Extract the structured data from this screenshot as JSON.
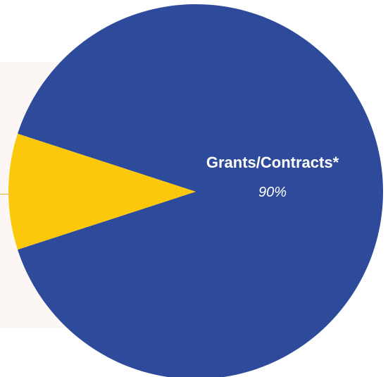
{
  "chart_data": {
    "type": "pie",
    "slices": [
      {
        "label": "Grants/Contracts*",
        "value": 90,
        "value_label": "90%",
        "color": "#2e4b9b"
      },
      {
        "label": "",
        "value": 10,
        "value_label": "",
        "color": "#fcc80b"
      }
    ]
  },
  "colors": {
    "panel_background": "#fcf7f5",
    "leader_line": "#e0b52a"
  }
}
